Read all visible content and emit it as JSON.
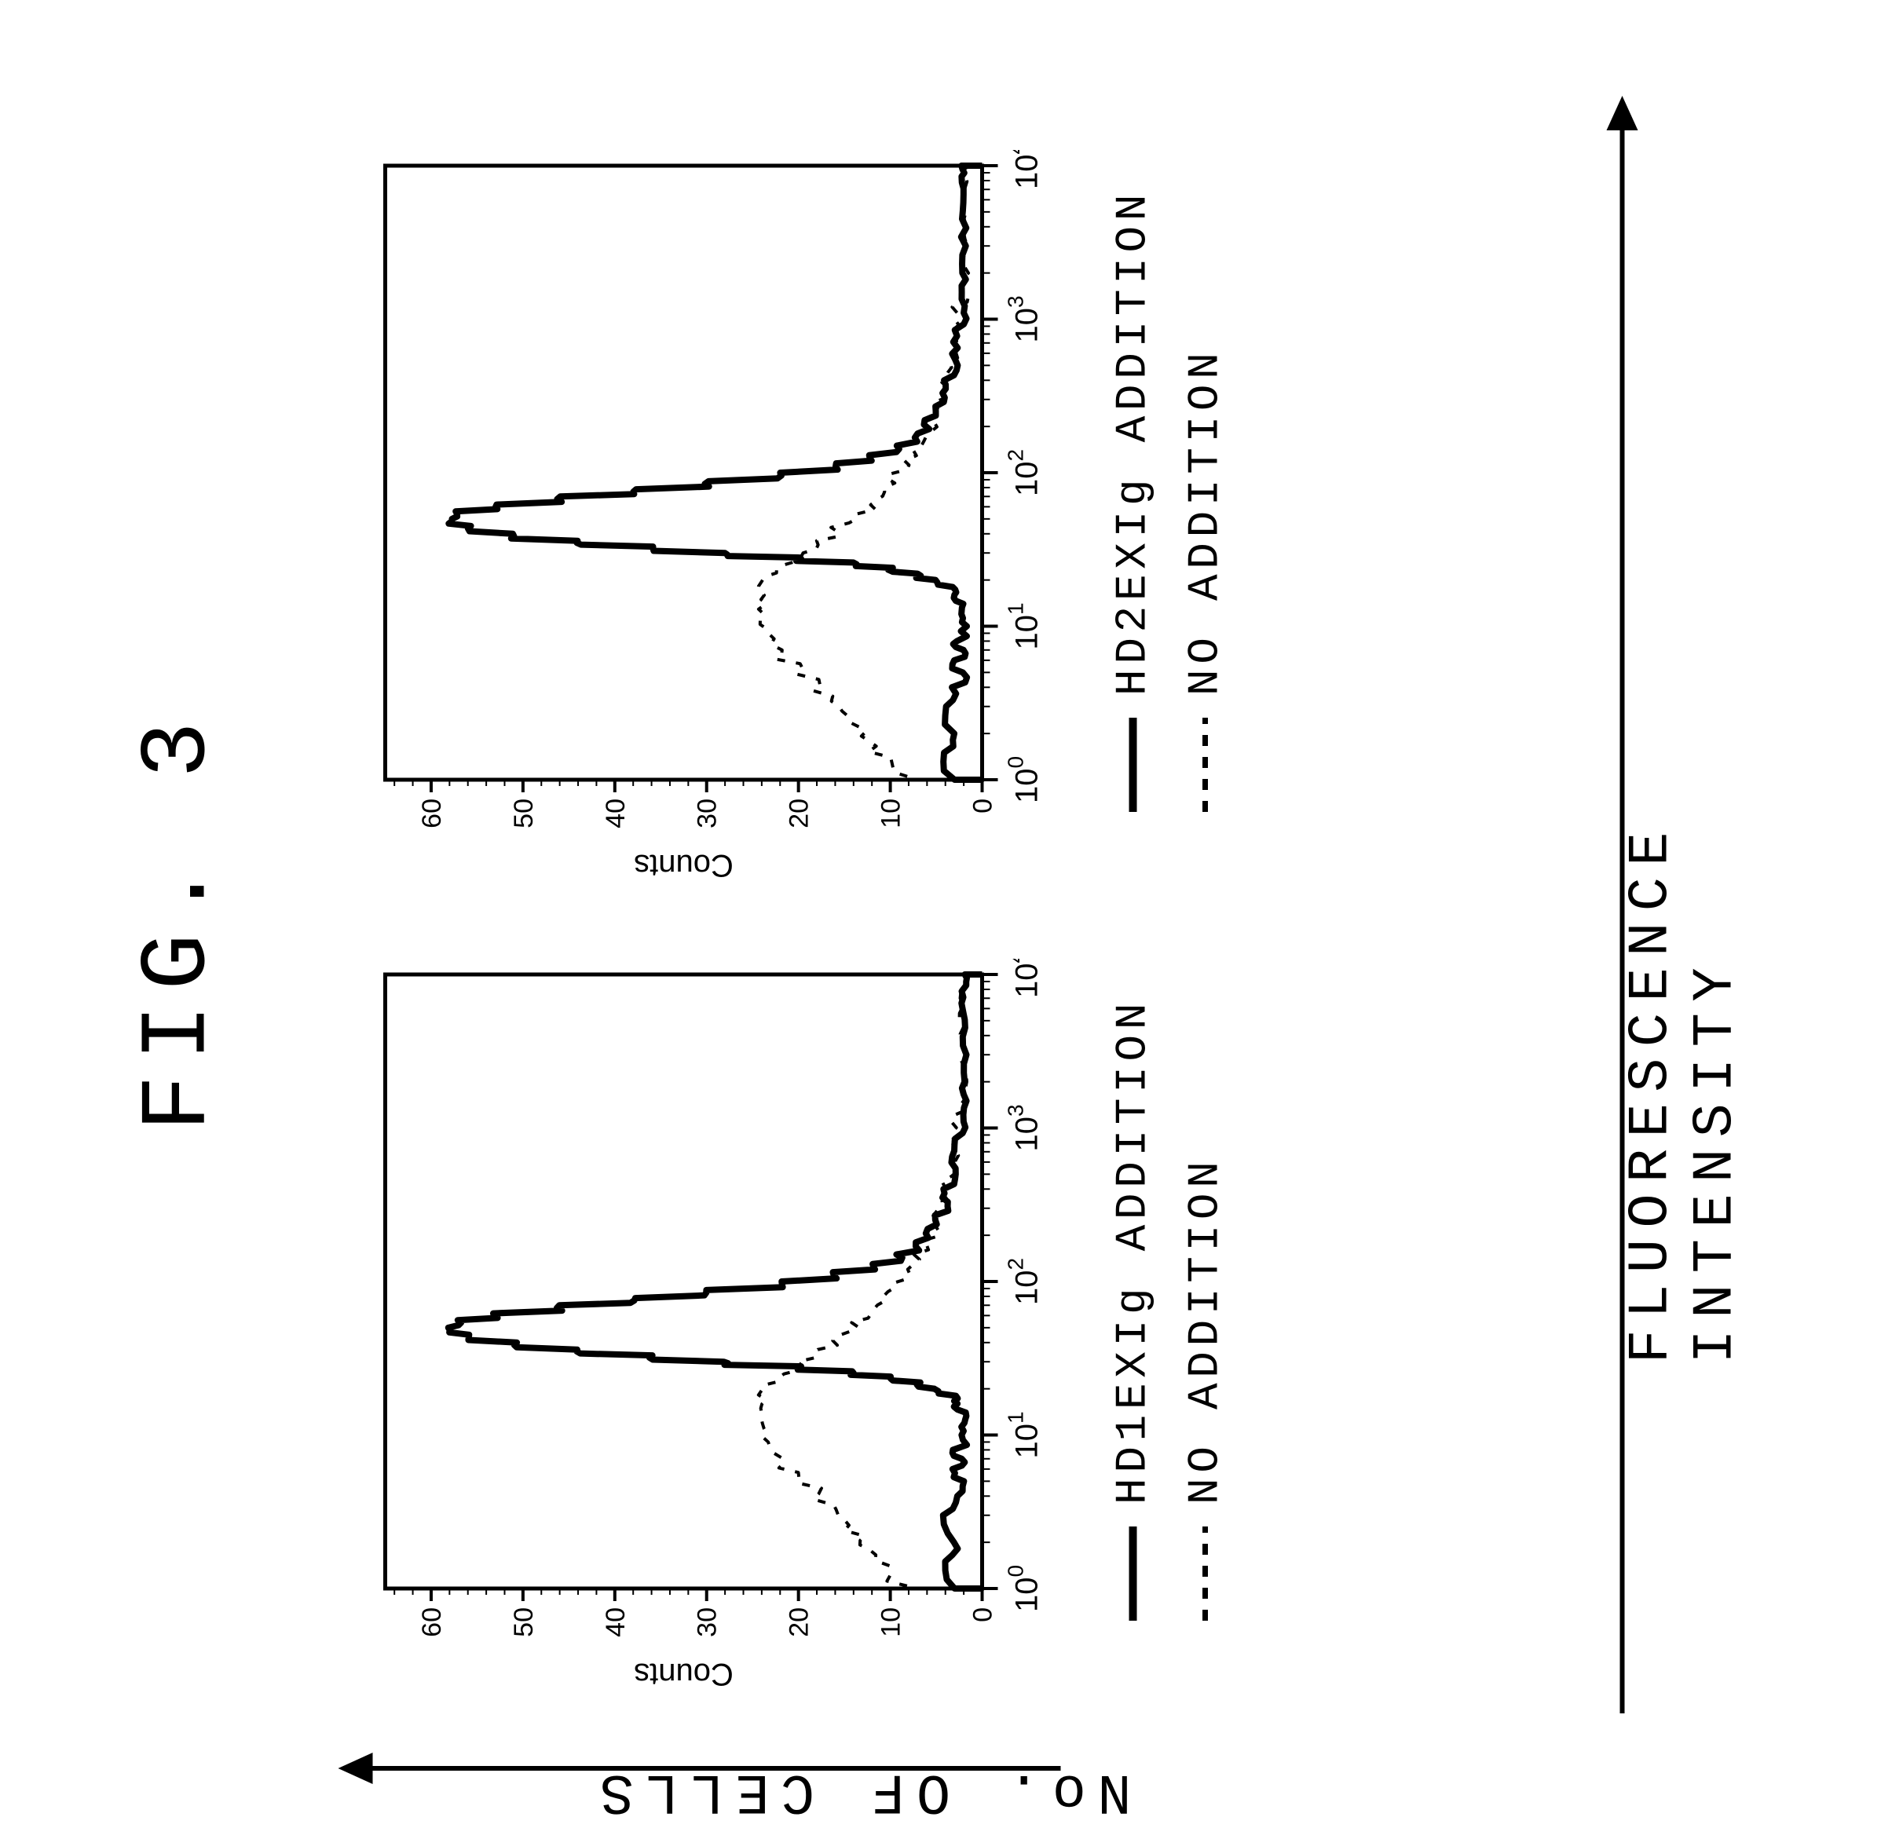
{
  "figure_title": "FIG. 3",
  "x_axis_label": "FLUORESCENCE INTENSITY",
  "y_axis_label": "No. OF CELLS",
  "panel_yaxis_internal_label": "Counts",
  "colors": {
    "stroke": "#000000",
    "background": "#ffffff"
  },
  "typography": {
    "title_fontsize_pt": 90,
    "axis_label_fontsize_pt": 54,
    "legend_fontsize_pt": 42,
    "tick_label_fontsize_pt": 34,
    "font_family": "Courier New"
  },
  "panels": [
    {
      "id": "panel-hd1",
      "legend": [
        {
          "style": "solid",
          "label": "HD1EXIg ADDITION"
        },
        {
          "style": "dashed",
          "label": "NO ADDITION"
        }
      ]
    },
    {
      "id": "panel-hd2",
      "legend": [
        {
          "style": "solid",
          "label": "HD2EXIg ADDITION"
        },
        {
          "style": "dashed",
          "label": "NO ADDITION"
        }
      ]
    }
  ],
  "chart": {
    "type": "histogram",
    "xscale": "log",
    "xlim": [
      1,
      10000
    ],
    "xticks": [
      1,
      10,
      100,
      1000,
      10000
    ],
    "xtick_labels": [
      "10^0",
      "10^1",
      "10^2",
      "10^3",
      "10^4"
    ],
    "ylim": [
      0,
      65
    ],
    "yticks": [
      0,
      10,
      20,
      30,
      40,
      50,
      60
    ],
    "line_width_solid": 8,
    "line_width_dashed": 4,
    "dash_pattern": "10 14",
    "series": {
      "hd_solid": [
        [
          1.0,
          3
        ],
        [
          1.5,
          4
        ],
        [
          2,
          3
        ],
        [
          3,
          4
        ],
        [
          4,
          3
        ],
        [
          5,
          2
        ],
        [
          6,
          3
        ],
        [
          7,
          2
        ],
        [
          8,
          3
        ],
        [
          10,
          2
        ],
        [
          12,
          2
        ],
        [
          14,
          2
        ],
        [
          16,
          3
        ],
        [
          18,
          3
        ],
        [
          20,
          5
        ],
        [
          22,
          7
        ],
        [
          24,
          10
        ],
        [
          26,
          14
        ],
        [
          28,
          20
        ],
        [
          30,
          28
        ],
        [
          33,
          36
        ],
        [
          36,
          44
        ],
        [
          40,
          51
        ],
        [
          45,
          56
        ],
        [
          50,
          58
        ],
        [
          56,
          57
        ],
        [
          62,
          53
        ],
        [
          70,
          46
        ],
        [
          78,
          38
        ],
        [
          88,
          30
        ],
        [
          100,
          22
        ],
        [
          115,
          16
        ],
        [
          130,
          12
        ],
        [
          150,
          9
        ],
        [
          180,
          7
        ],
        [
          220,
          6
        ],
        [
          270,
          5
        ],
        [
          330,
          4
        ],
        [
          400,
          4
        ],
        [
          500,
          3
        ],
        [
          650,
          3
        ],
        [
          850,
          3
        ],
        [
          1100,
          2
        ],
        [
          1500,
          2
        ],
        [
          2000,
          2
        ],
        [
          3000,
          2
        ],
        [
          4500,
          2
        ],
        [
          6500,
          2
        ],
        [
          8500,
          2
        ],
        [
          10000,
          2
        ]
      ],
      "no_addition": [
        [
          1.0,
          7
        ],
        [
          1.4,
          10
        ],
        [
          1.8,
          12
        ],
        [
          2.2,
          13
        ],
        [
          2.8,
          15
        ],
        [
          3.5,
          16
        ],
        [
          4.5,
          18
        ],
        [
          5.7,
          20
        ],
        [
          7,
          22
        ],
        [
          9,
          23
        ],
        [
          11,
          24
        ],
        [
          14,
          24
        ],
        [
          17,
          24
        ],
        [
          21,
          24
        ],
        [
          25,
          22
        ],
        [
          30,
          20
        ],
        [
          36,
          18
        ],
        [
          44,
          16
        ],
        [
          54,
          14
        ],
        [
          66,
          12
        ],
        [
          80,
          11
        ],
        [
          98,
          10
        ],
        [
          120,
          8
        ],
        [
          150,
          7
        ],
        [
          185,
          6
        ],
        [
          230,
          5
        ],
        [
          290,
          5
        ],
        [
          360,
          4
        ],
        [
          450,
          4
        ],
        [
          560,
          3
        ],
        [
          720,
          3
        ],
        [
          920,
          3
        ],
        [
          1200,
          3
        ],
        [
          1500,
          2
        ],
        [
          2000,
          2
        ],
        [
          2700,
          2
        ],
        [
          3700,
          2
        ],
        [
          5000,
          2
        ],
        [
          7000,
          2
        ],
        [
          10000,
          2
        ]
      ]
    }
  }
}
